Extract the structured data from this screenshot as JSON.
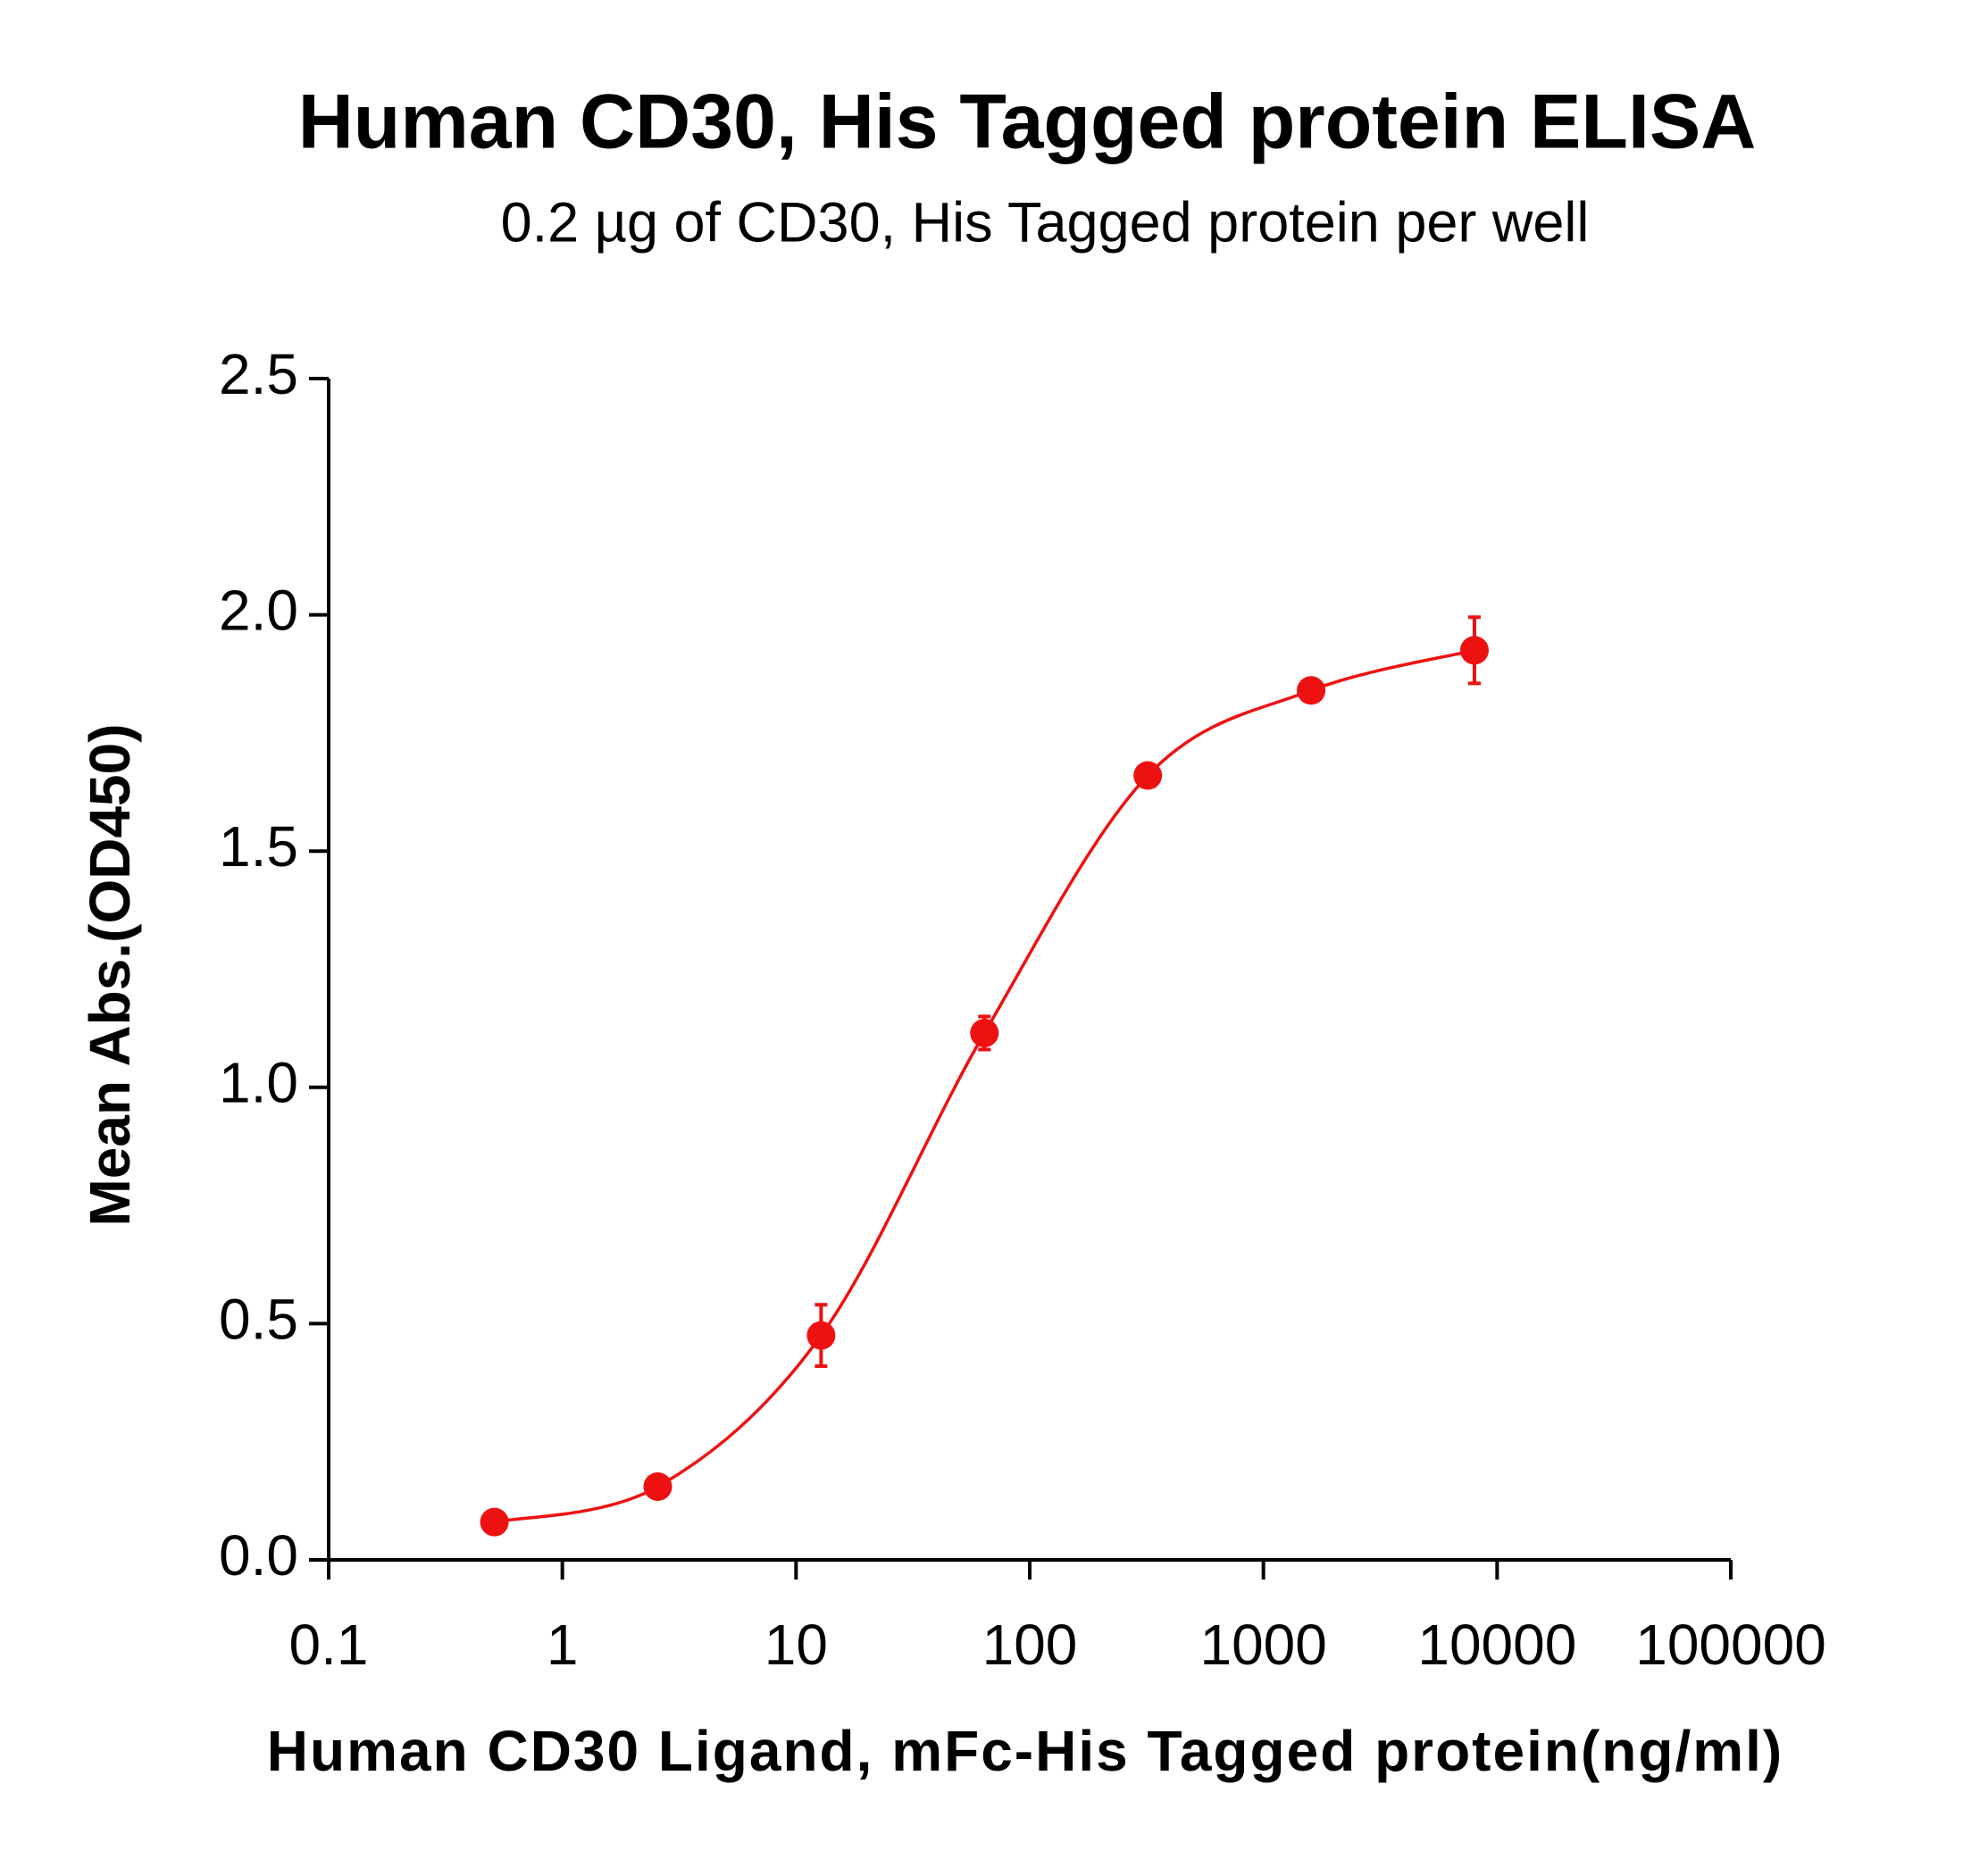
{
  "chart_data": {
    "type": "scatter",
    "title": "Human CD30, His Tagged protein ELISA",
    "subtitle": "0.2 µg of CD30, His Tagged protein per well",
    "x_label": "Human CD30 Ligand, mFc-His Tagged protein(ng/ml)",
    "y_label": "Mean Abs.(OD450)",
    "x_scale": "log",
    "xlim": [
      0.1,
      100000
    ],
    "xticks": [
      0.1,
      1,
      10,
      100,
      1000,
      10000,
      100000
    ],
    "ylim": [
      0,
      2.5
    ],
    "yticks": [
      {
        "value": 0,
        "label": "0.0"
      },
      0.5,
      {
        "value": 1,
        "label": "1.0"
      },
      1.5,
      {
        "value": 2,
        "label": "2.0"
      },
      2.5
    ],
    "series": [
      {
        "color": "#ee1111",
        "x": [
          0.512,
          2.56,
          12.8,
          64,
          320,
          1600,
          8000
        ],
        "values": [
          0.08,
          0.155,
          0.475,
          1.115,
          1.66,
          1.84,
          1.925
        ],
        "errors": [
          0.01,
          0.012,
          0.065,
          0.035,
          0.012,
          0.012,
          0.07
        ]
      }
    ]
  }
}
